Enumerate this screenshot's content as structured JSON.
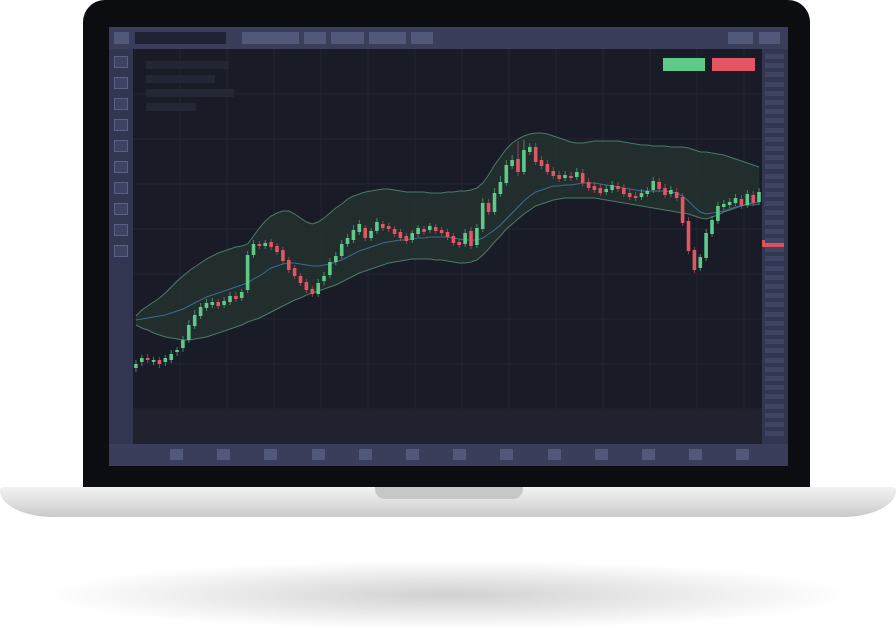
{
  "colors": {
    "bezel": "#0c0d10",
    "screen": "#1b1e29",
    "toolbar": "#3a3e5a",
    "bull": "#5fc98a",
    "bear": "#e25563",
    "band_fill": "#24302f",
    "band_line": "#4b7a66",
    "ma_line": "#3d6c8f",
    "grid": "#232633"
  },
  "icons": {
    "buy": "buy-button",
    "sell": "sell-button",
    "left_tools": "tool-icon",
    "bottom_tools": "timeframe-icon"
  },
  "chart_data": {
    "type": "candlestick",
    "candles": [
      [
        0,
        368,
        364,
        372,
        360
      ],
      [
        1,
        362,
        358,
        366,
        355
      ],
      [
        2,
        358,
        360,
        363,
        354
      ],
      [
        3,
        362,
        360,
        365,
        357
      ],
      [
        4,
        360,
        364,
        368,
        357
      ],
      [
        5,
        362,
        358,
        366,
        355
      ],
      [
        6,
        360,
        354,
        363,
        350
      ],
      [
        7,
        352,
        350,
        356,
        347
      ],
      [
        8,
        348,
        340,
        352,
        336
      ],
      [
        9,
        340,
        325,
        343,
        320
      ],
      [
        10,
        326,
        315,
        329,
        310
      ],
      [
        11,
        316,
        307,
        319,
        303
      ],
      [
        12,
        308,
        303,
        311,
        299
      ],
      [
        13,
        305,
        302,
        308,
        298
      ],
      [
        14,
        302,
        306,
        309,
        299
      ],
      [
        15,
        305,
        301,
        308,
        297
      ],
      [
        16,
        302,
        296,
        305,
        292
      ],
      [
        17,
        296,
        299,
        302,
        292
      ],
      [
        18,
        298,
        292,
        301,
        289
      ],
      [
        19,
        290,
        255,
        293,
        251
      ],
      [
        20,
        255,
        244,
        258,
        240
      ],
      [
        21,
        244,
        246,
        249,
        241
      ],
      [
        22,
        246,
        243,
        249,
        240
      ],
      [
        23,
        242,
        247,
        250,
        239
      ],
      [
        24,
        246,
        252,
        255,
        243
      ],
      [
        25,
        250,
        261,
        264,
        247
      ],
      [
        26,
        260,
        270,
        273,
        257
      ],
      [
        27,
        268,
        276,
        279,
        265
      ],
      [
        28,
        276,
        283,
        286,
        273
      ],
      [
        29,
        282,
        290,
        293,
        279
      ],
      [
        30,
        289,
        294,
        297,
        286
      ],
      [
        31,
        294,
        283,
        297,
        279
      ],
      [
        32,
        281,
        276,
        285,
        272
      ],
      [
        33,
        275,
        262,
        278,
        258
      ],
      [
        34,
        262,
        256,
        265,
        252
      ],
      [
        35,
        256,
        244,
        259,
        240
      ],
      [
        36,
        244,
        238,
        247,
        234
      ],
      [
        37,
        240,
        230,
        243,
        225
      ],
      [
        38,
        232,
        224,
        235,
        220
      ],
      [
        39,
        228,
        238,
        241,
        225
      ],
      [
        40,
        238,
        231,
        241,
        228
      ],
      [
        41,
        231,
        222,
        234,
        218
      ],
      [
        42,
        224,
        228,
        231,
        221
      ],
      [
        43,
        226,
        229,
        232,
        223
      ],
      [
        44,
        229,
        234,
        237,
        226
      ],
      [
        45,
        232,
        238,
        241,
        229
      ],
      [
        46,
        236,
        241,
        244,
        233
      ],
      [
        47,
        240,
        233,
        243,
        230
      ],
      [
        48,
        234,
        228,
        237,
        225
      ],
      [
        49,
        229,
        232,
        235,
        226
      ],
      [
        50,
        230,
        226,
        233,
        223
      ],
      [
        51,
        227,
        231,
        234,
        224
      ],
      [
        52,
        230,
        233,
        236,
        227
      ],
      [
        53,
        232,
        237,
        240,
        229
      ],
      [
        54,
        236,
        243,
        246,
        233
      ],
      [
        55,
        242,
        245,
        248,
        239
      ],
      [
        56,
        244,
        233,
        247,
        229
      ],
      [
        57,
        231,
        246,
        249,
        227
      ],
      [
        58,
        245,
        228,
        248,
        224
      ],
      [
        59,
        229,
        203,
        232,
        198
      ],
      [
        60,
        203,
        212,
        215,
        199
      ],
      [
        61,
        212,
        193,
        215,
        188
      ],
      [
        62,
        194,
        182,
        197,
        176
      ],
      [
        63,
        183,
        165,
        186,
        160
      ],
      [
        64,
        166,
        160,
        169,
        155
      ],
      [
        65,
        159,
        172,
        176,
        141
      ],
      [
        66,
        172,
        150,
        175,
        140
      ],
      [
        67,
        152,
        147,
        155,
        143
      ],
      [
        68,
        147,
        162,
        165,
        143
      ],
      [
        69,
        160,
        166,
        169,
        156
      ],
      [
        70,
        164,
        172,
        175,
        160
      ],
      [
        71,
        171,
        176,
        179,
        167
      ],
      [
        72,
        175,
        179,
        182,
        171
      ],
      [
        73,
        178,
        175,
        181,
        171
      ],
      [
        74,
        176,
        178,
        181,
        172
      ],
      [
        75,
        177,
        172,
        180,
        168
      ],
      [
        76,
        173,
        183,
        186,
        169
      ],
      [
        77,
        182,
        188,
        191,
        178
      ],
      [
        78,
        186,
        190,
        193,
        182
      ],
      [
        79,
        188,
        193,
        196,
        184
      ],
      [
        80,
        192,
        189,
        195,
        185
      ],
      [
        81,
        190,
        185,
        193,
        181
      ],
      [
        82,
        186,
        189,
        192,
        182
      ],
      [
        83,
        188,
        194,
        197,
        184
      ],
      [
        84,
        193,
        197,
        200,
        189
      ],
      [
        85,
        196,
        198,
        201,
        192
      ],
      [
        86,
        197,
        193,
        200,
        189
      ],
      [
        87,
        194,
        191,
        197,
        187
      ],
      [
        88,
        190,
        181,
        193,
        177
      ],
      [
        89,
        182,
        189,
        192,
        178
      ],
      [
        90,
        188,
        195,
        198,
        184
      ],
      [
        91,
        194,
        190,
        197,
        186
      ],
      [
        92,
        192,
        198,
        201,
        188
      ],
      [
        93,
        197,
        223,
        226,
        193
      ],
      [
        94,
        221,
        251,
        254,
        217
      ],
      [
        95,
        250,
        270,
        273,
        247
      ],
      [
        96,
        268,
        257,
        271,
        254
      ],
      [
        97,
        258,
        233,
        261,
        229
      ],
      [
        98,
        234,
        220,
        237,
        216
      ],
      [
        99,
        221,
        206,
        224,
        202
      ],
      [
        100,
        207,
        204,
        210,
        200
      ],
      [
        101,
        205,
        202,
        208,
        198
      ],
      [
        102,
        203,
        198,
        206,
        194
      ],
      [
        103,
        199,
        206,
        209,
        195
      ],
      [
        104,
        205,
        194,
        208,
        190
      ],
      [
        105,
        195,
        203,
        206,
        191
      ],
      [
        106,
        202,
        192,
        205,
        188
      ]
    ],
    "ma": [
      320,
      319,
      318,
      317,
      316,
      315,
      313,
      311,
      309,
      306,
      303,
      300,
      297,
      295,
      293,
      291,
      289,
      287,
      285,
      283,
      279,
      276,
      272,
      268,
      266,
      264,
      263,
      263,
      264,
      265,
      266,
      266,
      265,
      264,
      262,
      260,
      257,
      254,
      251,
      249,
      247,
      245,
      243,
      242,
      241,
      240,
      240,
      239,
      238,
      238,
      237,
      237,
      237,
      237,
      238,
      239,
      240,
      240,
      240,
      238,
      234,
      230,
      225,
      219,
      213,
      207,
      201,
      196,
      192,
      190,
      188,
      186,
      186,
      185,
      185,
      184,
      183,
      183,
      183,
      184,
      185,
      186,
      187,
      188,
      189,
      190,
      191,
      191,
      191,
      191,
      191,
      192,
      193,
      196,
      201,
      207,
      212,
      214,
      213,
      212,
      211,
      209,
      207,
      206,
      205,
      205,
      204
    ],
    "band_upper": [
      316,
      310,
      306,
      302,
      298,
      293,
      287,
      281,
      276,
      271,
      267,
      263,
      259,
      256,
      253,
      251,
      249,
      247,
      246,
      244,
      236,
      228,
      221,
      216,
      213,
      211,
      211,
      214,
      218,
      222,
      224,
      222,
      218,
      213,
      208,
      204,
      199,
      196,
      194,
      192,
      191,
      190,
      189,
      189,
      190,
      191,
      192,
      192,
      192,
      192,
      193,
      193,
      193,
      192,
      192,
      191,
      191,
      190,
      188,
      183,
      175,
      165,
      157,
      149,
      143,
      139,
      136,
      134,
      133,
      133,
      134,
      136,
      138,
      140,
      142,
      143,
      143,
      142,
      141,
      141,
      141,
      141,
      141,
      142,
      143,
      144,
      145,
      145,
      146,
      146,
      146,
      147,
      147,
      147,
      148,
      150,
      152,
      152,
      153,
      154,
      155,
      157,
      159,
      161,
      163,
      165,
      167
    ],
    "band_lower": [
      325,
      328,
      330,
      333,
      335,
      337,
      338,
      339,
      340,
      340,
      339,
      338,
      337,
      335,
      333,
      331,
      329,
      327,
      325,
      322,
      320,
      318,
      315,
      312,
      309,
      306,
      303,
      300,
      298,
      295,
      293,
      291,
      289,
      287,
      285,
      282,
      279,
      276,
      273,
      271,
      269,
      267,
      265,
      263,
      262,
      261,
      260,
      259,
      259,
      259,
      259,
      260,
      260,
      261,
      262,
      263,
      263,
      262,
      260,
      255,
      249,
      242,
      236,
      229,
      224,
      219,
      214,
      210,
      206,
      204,
      202,
      200,
      199,
      198,
      198,
      198,
      198,
      198,
      198,
      199,
      200,
      201,
      202,
      203,
      204,
      205,
      206,
      207,
      208,
      209,
      210,
      211,
      212,
      213,
      214,
      216,
      218,
      219,
      217,
      215,
      212,
      210,
      208,
      206,
      204,
      203,
      202
    ]
  }
}
